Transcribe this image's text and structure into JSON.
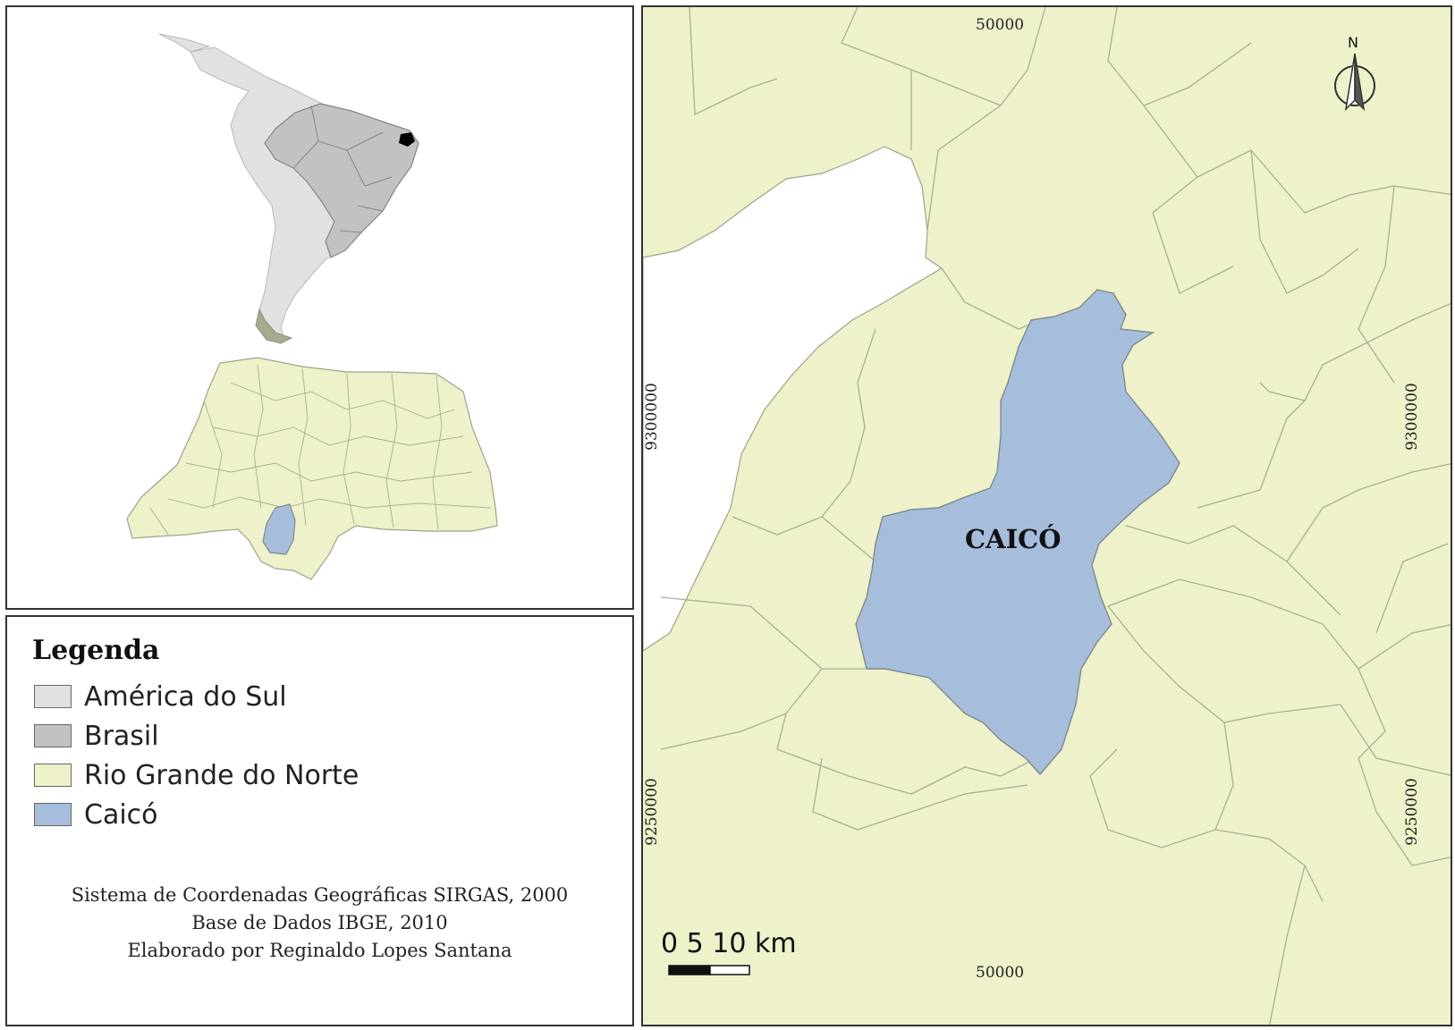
{
  "legend": {
    "title": "Legenda",
    "items": [
      {
        "label": "América do Sul",
        "color": "#e1e1e1"
      },
      {
        "label": "Brasil",
        "color": "#c2c2c2"
      },
      {
        "label": "Rio Grande do Norte",
        "color": "#eef1c9"
      },
      {
        "label": "Caicó",
        "color": "#a6bddb"
      }
    ],
    "credits": [
      "Sistema de Coordenadas Geográficas SIRGAS, 2000",
      "Base de Dados IBGE, 2010",
      "Elaborado por Reginaldo Lopes Santana"
    ]
  },
  "main_map": {
    "city_label": "CAICÓ",
    "coord_top": "50000",
    "coord_bottom": "50000",
    "coord_left_upper": "9300000",
    "coord_left_lower": "9250000",
    "coord_right_upper": "9300000",
    "coord_right_lower": "9250000",
    "north_label": "N",
    "scale_label": "0   5   10 km"
  },
  "colors": {
    "south_america": "#e1e1e1",
    "brasil": "#c2c2c2",
    "rio_grande_do_norte": "#eef1c9",
    "caico": "#a6bddb",
    "border": "#9aa58a",
    "state_highlight": "#000000"
  },
  "icons": [
    "north-arrow-icon"
  ]
}
